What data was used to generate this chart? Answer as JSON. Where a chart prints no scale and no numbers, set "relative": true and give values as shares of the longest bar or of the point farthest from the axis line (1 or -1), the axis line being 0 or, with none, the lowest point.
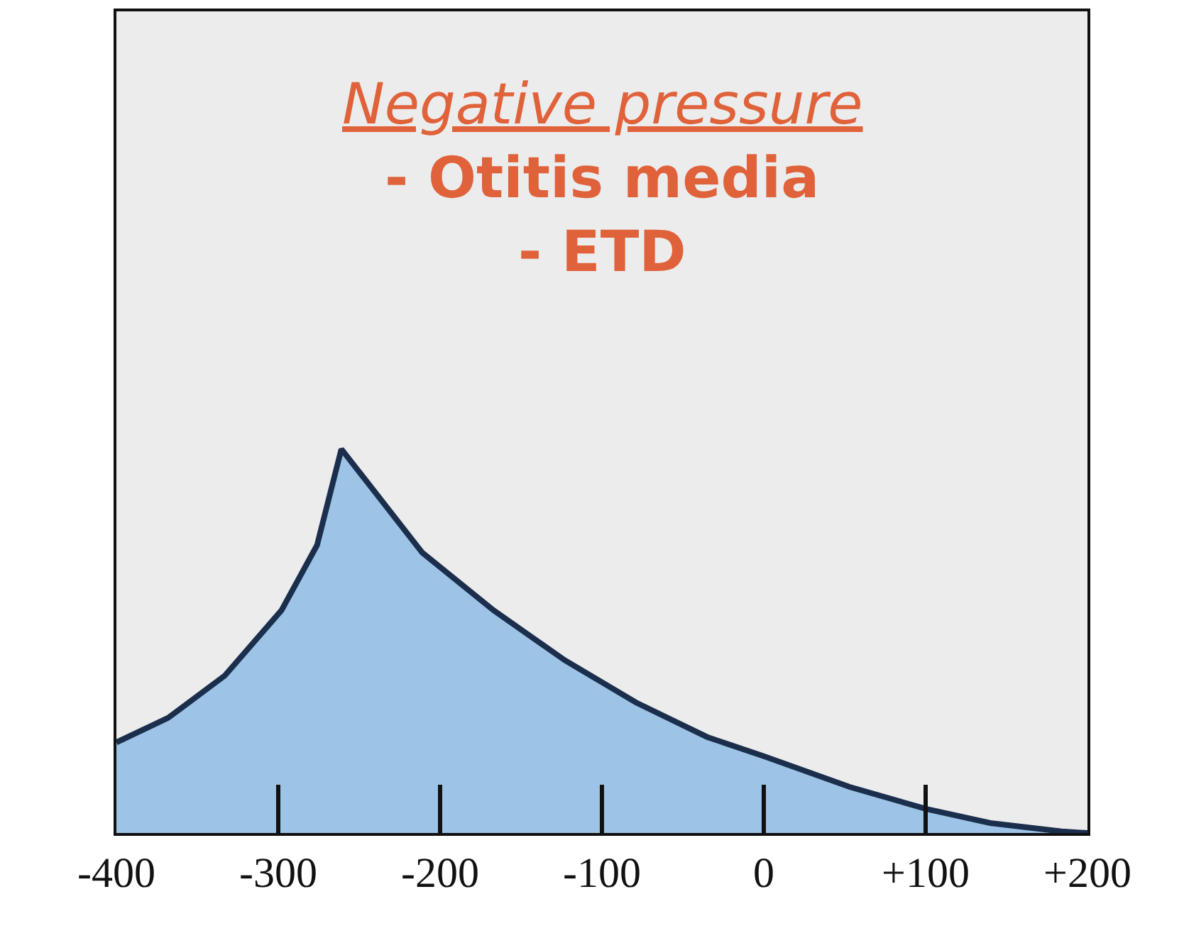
{
  "chart_data": {
    "type": "area",
    "relative": true,
    "x": [
      -400,
      -368,
      -333,
      -298,
      -276,
      -261,
      -211,
      -167,
      -123,
      -79,
      -35,
      0,
      53,
      100,
      140,
      184,
      200
    ],
    "series": [
      {
        "color": "#1b2f4d",
        "values": [
          0.236,
          0.3,
          0.41,
          0.58,
          0.75,
          1,
          0.73,
          0.58,
          0.45,
          0.34,
          0.25,
          0.2,
          0.12,
          0.063,
          0.026,
          0.004,
          0
        ]
      }
    ],
    "xlim": [
      -400,
      200
    ],
    "xticks": [
      -400,
      -300,
      -200,
      -100,
      0,
      {
        "value": 100,
        "label": "+100"
      },
      {
        "value": 200,
        "label": "+200"
      }
    ],
    "annotations": [
      "Negative pressure",
      "- Otitis media",
      "- ETD"
    ],
    "grid": false,
    "tick_labels": "x",
    "marker": "none",
    "line_style": "solid"
  }
}
